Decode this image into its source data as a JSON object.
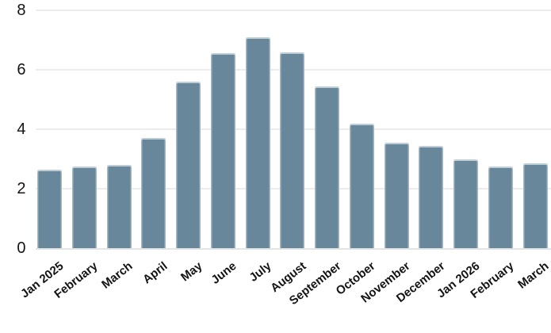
{
  "chart_data": {
    "type": "bar",
    "title": "",
    "categories": [
      "Jan 2025",
      "February",
      "March",
      "April",
      "May",
      "June",
      "July",
      "August",
      "September",
      "October",
      "November",
      "December",
      "Jan 2026",
      "February",
      "March"
    ],
    "values": [
      2.65,
      2.75,
      2.8,
      3.7,
      5.6,
      6.55,
      7.1,
      6.6,
      5.45,
      4.2,
      3.55,
      3.45,
      3.0,
      2.75,
      2.85
    ],
    "xlabel": "",
    "ylabel": "",
    "ylim": [
      0,
      8
    ],
    "yticks": [
      0,
      2,
      4,
      6,
      8
    ],
    "grid": true,
    "legend": false,
    "colors": {
      "bar": "#69879b",
      "bar_edge": "#e9eef2",
      "grid": "#ececec",
      "baseline": "#e4e4e4",
      "text": "#141414",
      "background": "#ffffff"
    }
  }
}
